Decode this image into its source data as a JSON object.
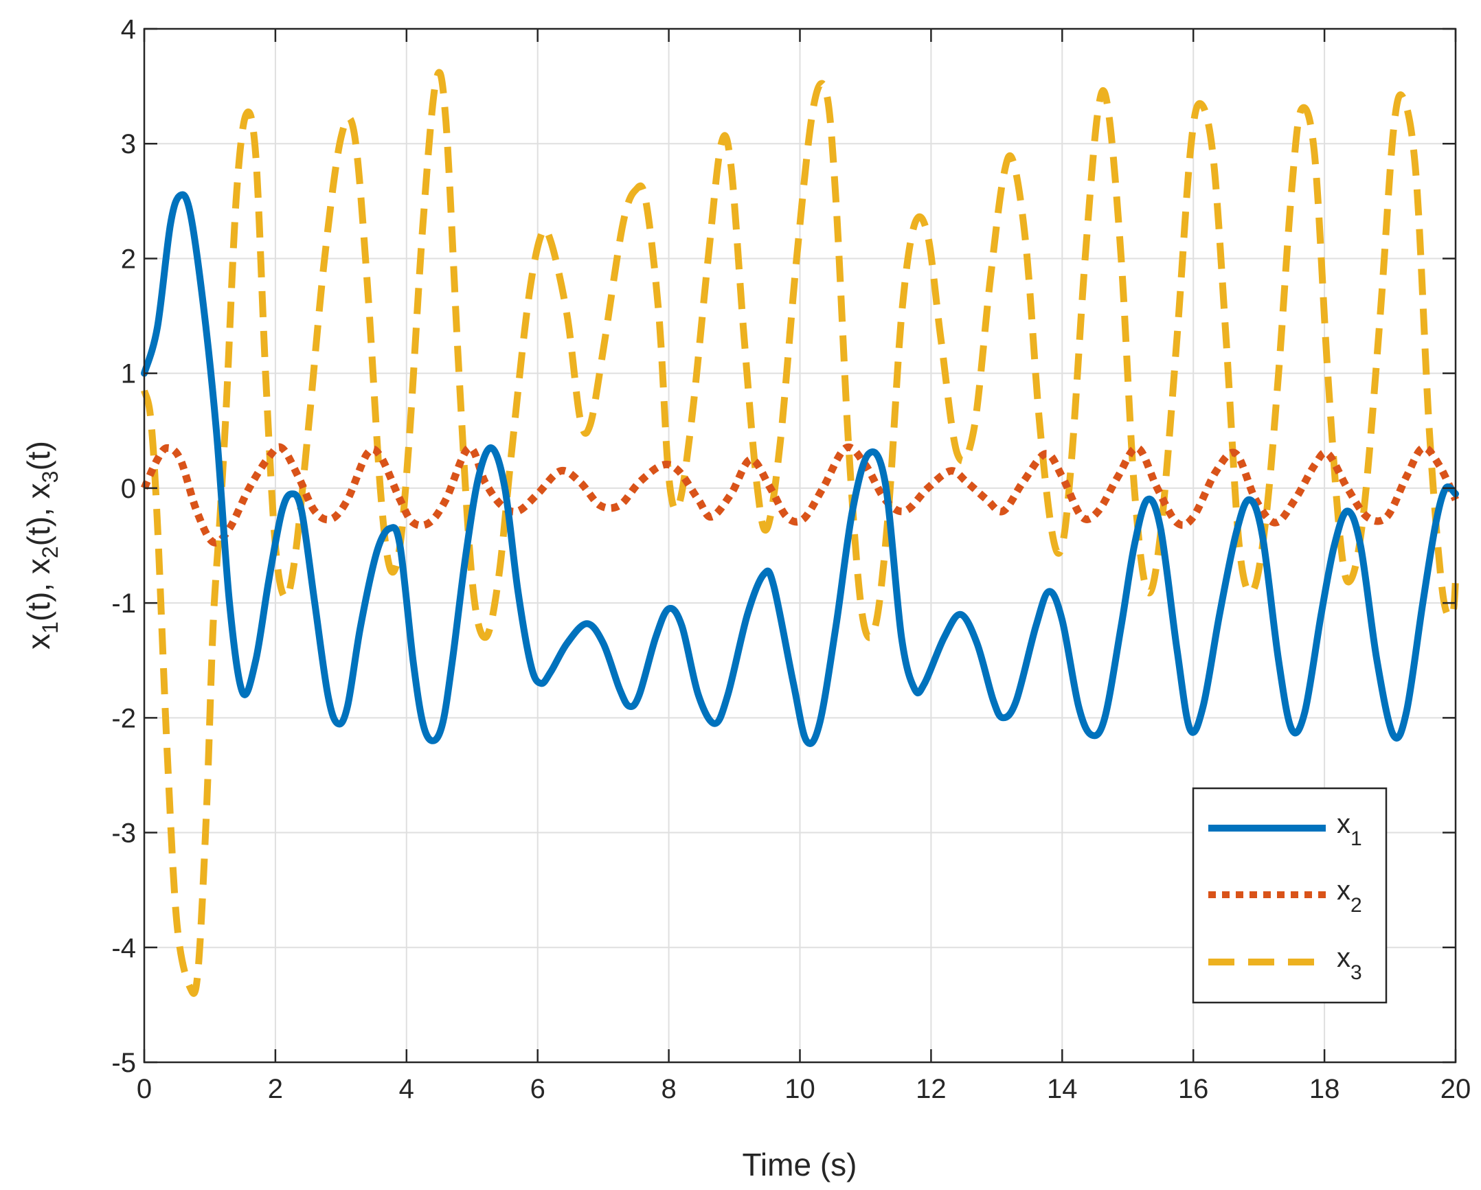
{
  "chart_data": {
    "type": "line",
    "title": "",
    "xlabel": "Time (s)",
    "ylabel": {
      "parts": [
        "x",
        "1",
        "(t), x",
        "2",
        "(t), x",
        "3",
        "(t)"
      ]
    },
    "xlim": [
      0,
      20
    ],
    "ylim": [
      -5,
      4
    ],
    "xticks": [
      0,
      2,
      4,
      6,
      8,
      10,
      12,
      14,
      16,
      18,
      20
    ],
    "yticks": [
      -5,
      -4,
      -3,
      -2,
      -1,
      0,
      1,
      2,
      3,
      4
    ],
    "xtick_labels": [
      "0",
      "2",
      "4",
      "6",
      "8",
      "10",
      "12",
      "14",
      "16",
      "18",
      "20"
    ],
    "ytick_labels": [
      "-5",
      "-4",
      "-3",
      "-2",
      "-1",
      "0",
      "1",
      "2",
      "3",
      "4"
    ],
    "grid": true,
    "legend_position": "bottom-right",
    "series": [
      {
        "name": "x1",
        "label_base": "x",
        "label_sub": "1",
        "color": "#0072BD",
        "style": "solid",
        "points": [
          [
            0,
            1.0
          ],
          [
            0.2,
            1.4
          ],
          [
            0.4,
            2.3
          ],
          [
            0.55,
            2.55
          ],
          [
            0.7,
            2.4
          ],
          [
            0.9,
            1.6
          ],
          [
            1.1,
            0.5
          ],
          [
            1.3,
            -1.0
          ],
          [
            1.5,
            -1.78
          ],
          [
            1.7,
            -1.5
          ],
          [
            1.9,
            -0.8
          ],
          [
            2.1,
            -0.2
          ],
          [
            2.25,
            -0.05
          ],
          [
            2.4,
            -0.2
          ],
          [
            2.6,
            -1.0
          ],
          [
            2.8,
            -1.8
          ],
          [
            2.95,
            -2.05
          ],
          [
            3.1,
            -1.9
          ],
          [
            3.3,
            -1.2
          ],
          [
            3.55,
            -0.55
          ],
          [
            3.75,
            -0.35
          ],
          [
            3.9,
            -0.5
          ],
          [
            4.1,
            -1.5
          ],
          [
            4.25,
            -2.05
          ],
          [
            4.4,
            -2.2
          ],
          [
            4.55,
            -2.05
          ],
          [
            4.7,
            -1.5
          ],
          [
            4.9,
            -0.6
          ],
          [
            5.1,
            0.1
          ],
          [
            5.3,
            0.35
          ],
          [
            5.5,
            0.0
          ],
          [
            5.7,
            -0.9
          ],
          [
            5.9,
            -1.55
          ],
          [
            6.05,
            -1.7
          ],
          [
            6.2,
            -1.6
          ],
          [
            6.45,
            -1.35
          ],
          [
            6.75,
            -1.18
          ],
          [
            7.0,
            -1.35
          ],
          [
            7.25,
            -1.75
          ],
          [
            7.4,
            -1.9
          ],
          [
            7.55,
            -1.8
          ],
          [
            7.8,
            -1.3
          ],
          [
            8.0,
            -1.05
          ],
          [
            8.2,
            -1.2
          ],
          [
            8.45,
            -1.8
          ],
          [
            8.7,
            -2.05
          ],
          [
            8.9,
            -1.8
          ],
          [
            9.2,
            -1.1
          ],
          [
            9.45,
            -0.75
          ],
          [
            9.6,
            -0.85
          ],
          [
            9.9,
            -1.7
          ],
          [
            10.1,
            -2.2
          ],
          [
            10.3,
            -2.05
          ],
          [
            10.55,
            -1.2
          ],
          [
            10.8,
            -0.2
          ],
          [
            11.05,
            0.3
          ],
          [
            11.3,
            0.05
          ],
          [
            11.55,
            -1.3
          ],
          [
            11.75,
            -1.75
          ],
          [
            11.9,
            -1.7
          ],
          [
            12.2,
            -1.3
          ],
          [
            12.45,
            -1.1
          ],
          [
            12.7,
            -1.35
          ],
          [
            12.95,
            -1.85
          ],
          [
            13.1,
            -2.0
          ],
          [
            13.3,
            -1.85
          ],
          [
            13.6,
            -1.2
          ],
          [
            13.8,
            -0.9
          ],
          [
            14.0,
            -1.15
          ],
          [
            14.25,
            -1.9
          ],
          [
            14.45,
            -2.15
          ],
          [
            14.65,
            -2.0
          ],
          [
            14.9,
            -1.2
          ],
          [
            15.1,
            -0.5
          ],
          [
            15.3,
            -0.1
          ],
          [
            15.5,
            -0.35
          ],
          [
            15.75,
            -1.4
          ],
          [
            15.95,
            -2.1
          ],
          [
            16.15,
            -1.9
          ],
          [
            16.4,
            -1.1
          ],
          [
            16.65,
            -0.4
          ],
          [
            16.85,
            -0.1
          ],
          [
            17.05,
            -0.4
          ],
          [
            17.3,
            -1.5
          ],
          [
            17.5,
            -2.1
          ],
          [
            17.7,
            -1.95
          ],
          [
            17.95,
            -1.1
          ],
          [
            18.15,
            -0.5
          ],
          [
            18.35,
            -0.2
          ],
          [
            18.55,
            -0.5
          ],
          [
            18.8,
            -1.5
          ],
          [
            19.05,
            -2.15
          ],
          [
            19.25,
            -1.95
          ],
          [
            19.5,
            -1.0
          ],
          [
            19.7,
            -0.3
          ],
          [
            19.85,
            0.0
          ],
          [
            20.0,
            -0.05
          ]
        ]
      },
      {
        "name": "x2",
        "label_base": "x",
        "label_sub": "2",
        "color": "#D95319",
        "style": "dotted",
        "points": [
          [
            0,
            0.0
          ],
          [
            0.2,
            0.25
          ],
          [
            0.35,
            0.35
          ],
          [
            0.55,
            0.25
          ],
          [
            0.8,
            -0.2
          ],
          [
            1.05,
            -0.47
          ],
          [
            1.3,
            -0.35
          ],
          [
            1.6,
            0.0
          ],
          [
            1.9,
            0.27
          ],
          [
            2.1,
            0.35
          ],
          [
            2.35,
            0.1
          ],
          [
            2.6,
            -0.2
          ],
          [
            2.85,
            -0.27
          ],
          [
            3.1,
            -0.1
          ],
          [
            3.4,
            0.3
          ],
          [
            3.6,
            0.28
          ],
          [
            3.9,
            -0.1
          ],
          [
            4.1,
            -0.3
          ],
          [
            4.35,
            -0.3
          ],
          [
            4.6,
            -0.1
          ],
          [
            4.95,
            0.35
          ],
          [
            5.2,
            0.05
          ],
          [
            5.45,
            -0.15
          ],
          [
            5.7,
            -0.2
          ],
          [
            6.0,
            -0.05
          ],
          [
            6.35,
            0.15
          ],
          [
            6.65,
            0.05
          ],
          [
            6.95,
            -0.15
          ],
          [
            7.25,
            -0.15
          ],
          [
            7.55,
            0.05
          ],
          [
            7.9,
            0.2
          ],
          [
            8.15,
            0.15
          ],
          [
            8.45,
            -0.1
          ],
          [
            8.65,
            -0.25
          ],
          [
            8.95,
            -0.05
          ],
          [
            9.25,
            0.25
          ],
          [
            9.55,
            0.0
          ],
          [
            9.8,
            -0.25
          ],
          [
            10.05,
            -0.27
          ],
          [
            10.35,
            0.0
          ],
          [
            10.7,
            0.35
          ],
          [
            11.0,
            0.2
          ],
          [
            11.3,
            -0.1
          ],
          [
            11.6,
            -0.2
          ],
          [
            11.95,
            0.0
          ],
          [
            12.3,
            0.15
          ],
          [
            12.55,
            0.05
          ],
          [
            12.85,
            -0.1
          ],
          [
            13.1,
            -0.2
          ],
          [
            13.4,
            0.05
          ],
          [
            13.75,
            0.3
          ],
          [
            14.0,
            0.1
          ],
          [
            14.3,
            -0.25
          ],
          [
            14.55,
            -0.2
          ],
          [
            14.85,
            0.1
          ],
          [
            15.15,
            0.35
          ],
          [
            15.45,
            0.0
          ],
          [
            15.75,
            -0.3
          ],
          [
            16.0,
            -0.25
          ],
          [
            16.35,
            0.15
          ],
          [
            16.65,
            0.3
          ],
          [
            16.95,
            -0.1
          ],
          [
            17.25,
            -0.3
          ],
          [
            17.55,
            -0.1
          ],
          [
            17.85,
            0.2
          ],
          [
            18.05,
            0.3
          ],
          [
            18.35,
            0.0
          ],
          [
            18.65,
            -0.25
          ],
          [
            18.95,
            -0.25
          ],
          [
            19.25,
            0.1
          ],
          [
            19.5,
            0.35
          ],
          [
            19.75,
            0.2
          ],
          [
            20.0,
            -0.1
          ]
        ]
      },
      {
        "name": "x3",
        "label_base": "x",
        "label_sub": "3",
        "color": "#EDB120",
        "style": "dashed",
        "points": [
          [
            0,
            0.85
          ],
          [
            0.1,
            0.6
          ],
          [
            0.2,
            -0.3
          ],
          [
            0.35,
            -2.3
          ],
          [
            0.5,
            -3.8
          ],
          [
            0.7,
            -4.35
          ],
          [
            0.82,
            -4.2
          ],
          [
            0.95,
            -2.8
          ],
          [
            1.05,
            -1.2
          ],
          [
            1.15,
            -0.3
          ],
          [
            1.25,
            0.7
          ],
          [
            1.4,
            2.5
          ],
          [
            1.55,
            3.25
          ],
          [
            1.7,
            2.9
          ],
          [
            1.85,
            1.0
          ],
          [
            2.0,
            -0.5
          ],
          [
            2.15,
            -0.95
          ],
          [
            2.3,
            -0.6
          ],
          [
            2.5,
            0.5
          ],
          [
            2.75,
            2.0
          ],
          [
            3.0,
            3.05
          ],
          [
            3.2,
            3.1
          ],
          [
            3.4,
            1.8
          ],
          [
            3.6,
            0.0
          ],
          [
            3.75,
            -0.7
          ],
          [
            3.9,
            -0.5
          ],
          [
            4.05,
            0.5
          ],
          [
            4.25,
            2.3
          ],
          [
            4.45,
            3.55
          ],
          [
            4.6,
            3.2
          ],
          [
            4.8,
            1.0
          ],
          [
            5.0,
            -0.8
          ],
          [
            5.2,
            -1.3
          ],
          [
            5.4,
            -0.8
          ],
          [
            5.6,
            0.3
          ],
          [
            5.85,
            1.6
          ],
          [
            6.05,
            2.2
          ],
          [
            6.2,
            2.15
          ],
          [
            6.45,
            1.5
          ],
          [
            6.65,
            0.6
          ],
          [
            6.8,
            0.55
          ],
          [
            7.0,
            1.2
          ],
          [
            7.3,
            2.3
          ],
          [
            7.5,
            2.6
          ],
          [
            7.65,
            2.5
          ],
          [
            7.85,
            1.5
          ],
          [
            8.0,
            0.1
          ],
          [
            8.15,
            -0.15
          ],
          [
            8.35,
            0.6
          ],
          [
            8.6,
            2.0
          ],
          [
            8.8,
            3.0
          ],
          [
            8.95,
            2.8
          ],
          [
            9.15,
            1.3
          ],
          [
            9.35,
            0.0
          ],
          [
            9.5,
            -0.35
          ],
          [
            9.7,
            0.4
          ],
          [
            9.95,
            2.0
          ],
          [
            10.2,
            3.3
          ],
          [
            10.4,
            3.45
          ],
          [
            10.55,
            2.5
          ],
          [
            10.75,
            0.3
          ],
          [
            10.95,
            -1.1
          ],
          [
            11.15,
            -1.2
          ],
          [
            11.35,
            -0.2
          ],
          [
            11.55,
            1.5
          ],
          [
            11.75,
            2.3
          ],
          [
            11.95,
            2.2
          ],
          [
            12.15,
            1.3
          ],
          [
            12.4,
            0.3
          ],
          [
            12.65,
            0.5
          ],
          [
            12.9,
            1.8
          ],
          [
            13.1,
            2.7
          ],
          [
            13.25,
            2.85
          ],
          [
            13.45,
            2.1
          ],
          [
            13.65,
            0.6
          ],
          [
            13.85,
            -0.4
          ],
          [
            14.0,
            -0.5
          ],
          [
            14.15,
            0.3
          ],
          [
            14.35,
            2.0
          ],
          [
            14.55,
            3.3
          ],
          [
            14.7,
            3.3
          ],
          [
            14.9,
            2.0
          ],
          [
            15.1,
            0.0
          ],
          [
            15.3,
            -0.9
          ],
          [
            15.5,
            -0.4
          ],
          [
            15.75,
            1.3
          ],
          [
            15.95,
            2.9
          ],
          [
            16.1,
            3.35
          ],
          [
            16.3,
            2.9
          ],
          [
            16.5,
            1.3
          ],
          [
            16.7,
            -0.5
          ],
          [
            16.9,
            -0.9
          ],
          [
            17.1,
            -0.3
          ],
          [
            17.3,
            1.0
          ],
          [
            17.5,
            2.6
          ],
          [
            17.65,
            3.3
          ],
          [
            17.85,
            2.9
          ],
          [
            18.05,
            1.0
          ],
          [
            18.25,
            -0.5
          ],
          [
            18.4,
            -0.8
          ],
          [
            18.6,
            -0.2
          ],
          [
            18.85,
            1.5
          ],
          [
            19.05,
            3.1
          ],
          [
            19.2,
            3.4
          ],
          [
            19.4,
            2.7
          ],
          [
            19.6,
            0.5
          ],
          [
            19.8,
            -0.9
          ],
          [
            19.95,
            -1.1
          ],
          [
            20.0,
            -0.8
          ]
        ]
      }
    ]
  }
}
